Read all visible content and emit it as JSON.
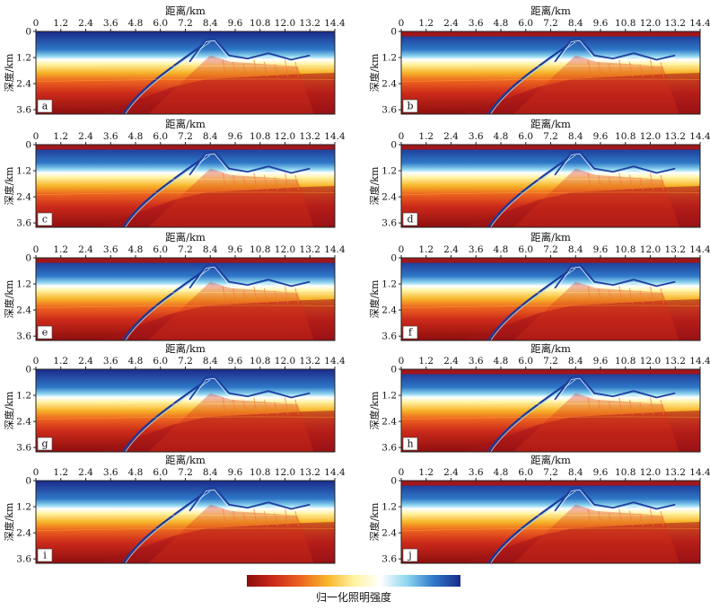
{
  "chart_data": {
    "type": "heatmap",
    "panels": [
      {
        "label": "a",
        "xlabel": "距离/km",
        "ylabel": "深度/km"
      },
      {
        "label": "b",
        "xlabel": "距离/km",
        "ylabel": "深度/km"
      },
      {
        "label": "c",
        "xlabel": "距离/km",
        "ylabel": "深度/km"
      },
      {
        "label": "d",
        "xlabel": "距离/km",
        "ylabel": "深度/km"
      },
      {
        "label": "e",
        "xlabel": "距离/km",
        "ylabel": "深度/km"
      },
      {
        "label": "f",
        "xlabel": "距离/km",
        "ylabel": "深度/km"
      },
      {
        "label": "g",
        "xlabel": "距离/km",
        "ylabel": "深度/km"
      },
      {
        "label": "h",
        "xlabel": "距离/km",
        "ylabel": "深度/km"
      },
      {
        "label": "i",
        "xlabel": "距离/km",
        "ylabel": "深度/km"
      },
      {
        "label": "j",
        "xlabel": "距离/km",
        "ylabel": "深度/km"
      }
    ],
    "x_ticks": [
      "0",
      "1.2",
      "2.4",
      "3.6",
      "4.8",
      "6.0",
      "7.2",
      "8.4",
      "9.6",
      "10.8",
      "12.0",
      "13.2",
      "14.4"
    ],
    "y_ticks": [
      "0",
      "1.2",
      "2.4",
      "3.6"
    ],
    "xlim": [
      0,
      14.4
    ],
    "ylim": [
      0,
      3.8
    ],
    "colorbar": {
      "label": "归一化照明强度",
      "colors": [
        "#8c0e0e",
        "#cc2a1a",
        "#ec6420",
        "#f7b429",
        "#fff2a0",
        "#ffffff",
        "#8fd6f0",
        "#2f78c8",
        "#1a2a8a"
      ]
    }
  }
}
